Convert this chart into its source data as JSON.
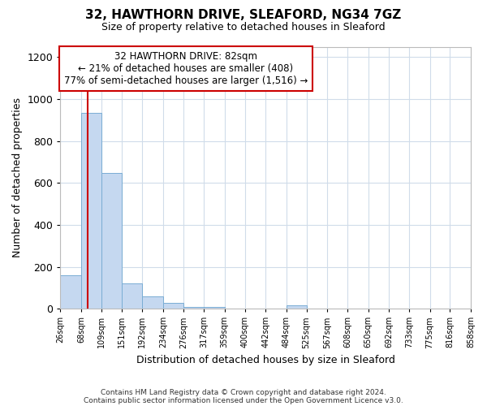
{
  "title1": "32, HAWTHORN DRIVE, SLEAFORD, NG34 7GZ",
  "title2": "Size of property relative to detached houses in Sleaford",
  "xlabel": "Distribution of detached houses by size in Sleaford",
  "ylabel": "Number of detached properties",
  "footnote1": "Contains HM Land Registry data © Crown copyright and database right 2024.",
  "footnote2": "Contains public sector information licensed under the Open Government Licence v3.0.",
  "annotation_line1": "32 HAWTHORN DRIVE: 82sqm",
  "annotation_line2": "← 21% of detached houses are smaller (408)",
  "annotation_line3": "77% of semi-detached houses are larger (1,516) →",
  "bar_left_edges": [
    26,
    68,
    109,
    151,
    192,
    234,
    276,
    317,
    359,
    400,
    442,
    484,
    525,
    567,
    608,
    650,
    692,
    733,
    775,
    816
  ],
  "bar_widths": [
    42,
    41,
    42,
    41,
    42,
    42,
    41,
    42,
    41,
    42,
    42,
    41,
    42,
    41,
    42,
    42,
    41,
    42,
    41,
    42
  ],
  "bar_heights": [
    160,
    935,
    648,
    120,
    60,
    27,
    10,
    10,
    0,
    0,
    0,
    15,
    0,
    0,
    0,
    0,
    0,
    0,
    0,
    0
  ],
  "bar_color": "#c5d8f0",
  "bar_edge_color": "#7aadd4",
  "vline_x": 82,
  "vline_color": "#cc0000",
  "ylim": [
    0,
    1250
  ],
  "yticks": [
    0,
    200,
    400,
    600,
    800,
    1000,
    1200
  ],
  "xlim": [
    26,
    858
  ],
  "xtick_labels": [
    "26sqm",
    "68sqm",
    "109sqm",
    "151sqm",
    "192sqm",
    "234sqm",
    "276sqm",
    "317sqm",
    "359sqm",
    "400sqm",
    "442sqm",
    "484sqm",
    "525sqm",
    "567sqm",
    "608sqm",
    "650sqm",
    "692sqm",
    "733sqm",
    "775sqm",
    "816sqm",
    "858sqm"
  ],
  "xtick_positions": [
    26,
    68,
    109,
    151,
    192,
    234,
    276,
    317,
    359,
    400,
    442,
    484,
    525,
    567,
    608,
    650,
    692,
    733,
    775,
    816,
    858
  ],
  "grid_color": "#d0dcea",
  "bg_color": "#ffffff",
  "fig_bg_color": "#ffffff"
}
